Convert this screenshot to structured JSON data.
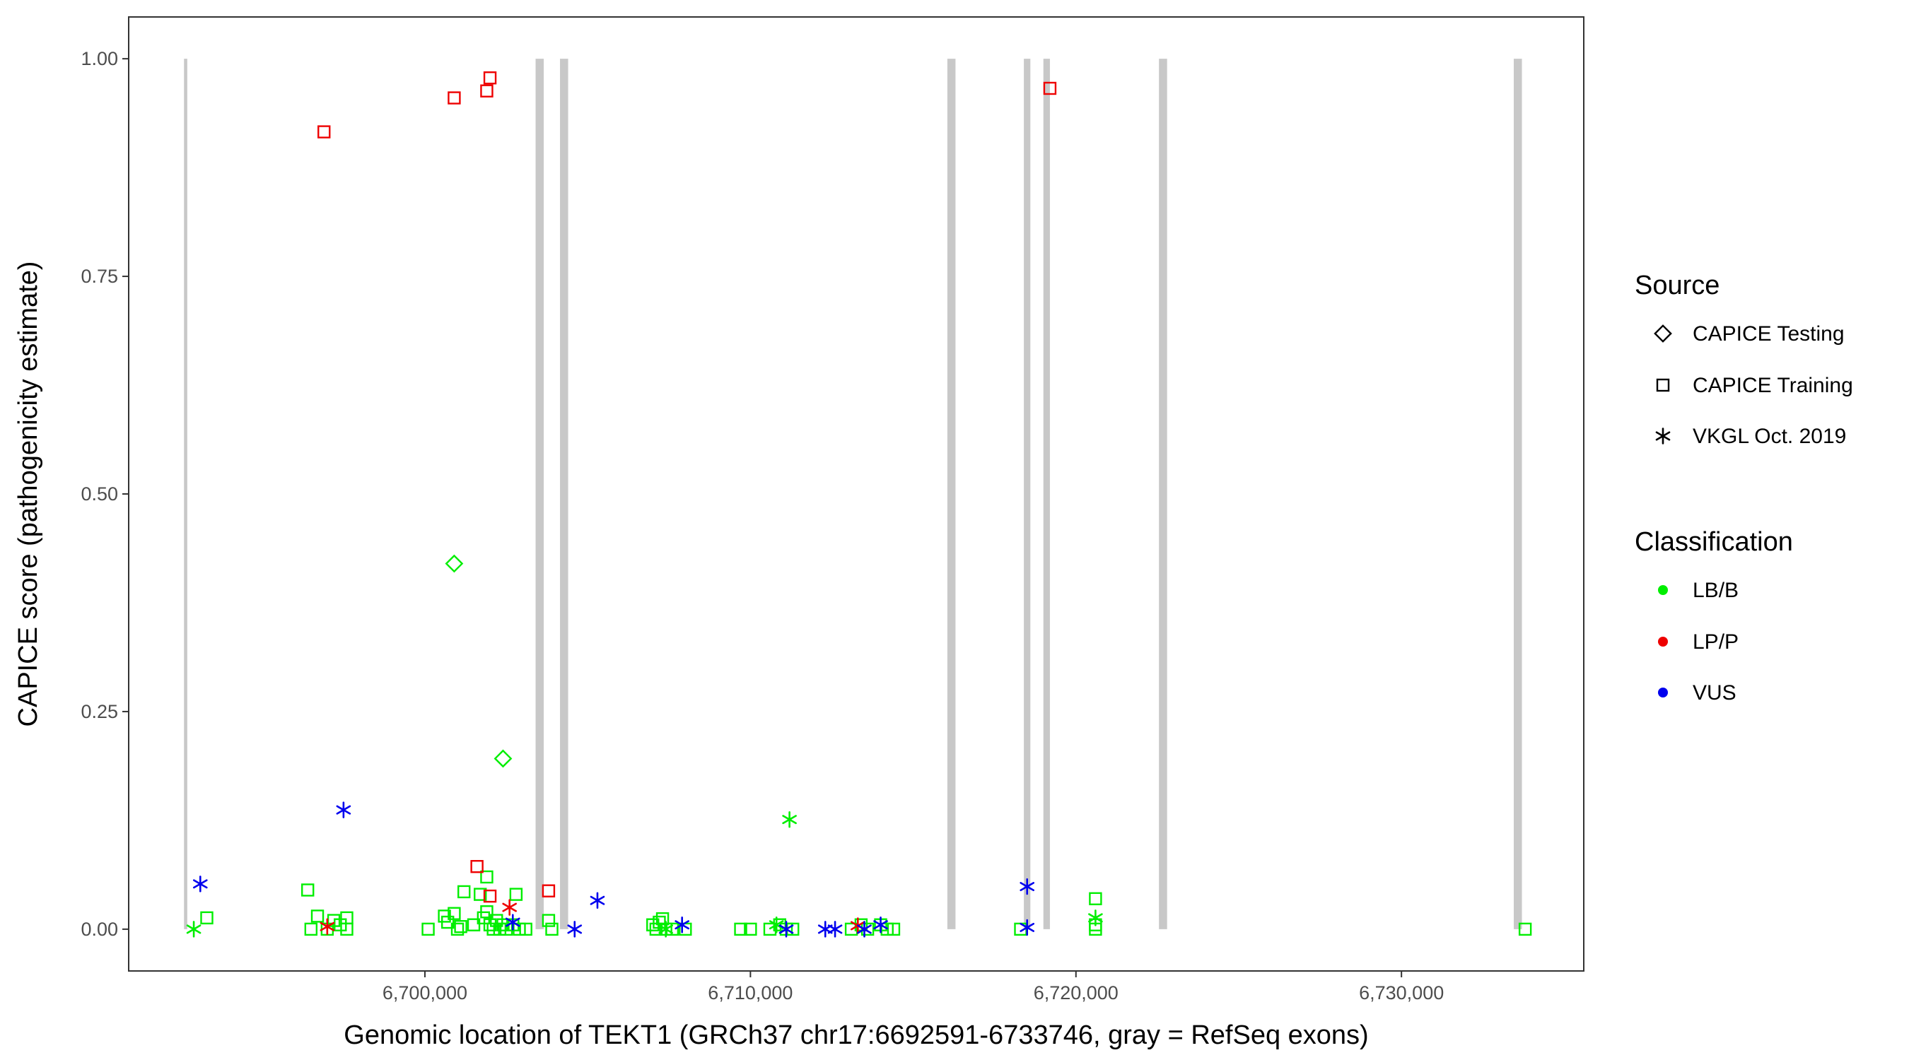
{
  "chart_data": {
    "type": "scatter",
    "title": "",
    "xlabel": "Genomic location of TEKT1 (GRCh37 chr17:6692591-6733746, gray = RefSeq exons)",
    "ylabel": "CAPICE score (pathogenicity estimate)",
    "xlim": [
      6690900,
      6735600
    ],
    "ylim": [
      -0.048,
      1.048
    ],
    "x_ticks": [
      6700000,
      6710000,
      6720000,
      6730000
    ],
    "x_tick_labels": [
      "6,700,000",
      "6,710,000",
      "6,720,000",
      "6,730,000"
    ],
    "y_ticks": [
      0,
      0.25,
      0.5,
      0.75,
      1
    ],
    "y_tick_labels": [
      "0.00",
      "0.25",
      "0.50",
      "0.75",
      "1.00"
    ],
    "grid": false,
    "exons_gray": [
      [
        6692600,
        6692700
      ],
      [
        6703400,
        6703650
      ],
      [
        6704150,
        6704400
      ],
      [
        6716050,
        6716300
      ],
      [
        6718400,
        6718600
      ],
      [
        6719000,
        6719200
      ],
      [
        6722550,
        6722800
      ],
      [
        6733450,
        6733700
      ]
    ],
    "legend": {
      "position": "right",
      "source": {
        "title": "Source",
        "entries": [
          {
            "label": "CAPICE Testing",
            "shape": "diamond"
          },
          {
            "label": "CAPICE Training",
            "shape": "square"
          },
          {
            "label": "VKGL Oct. 2019",
            "shape": "asterisk"
          }
        ]
      },
      "classification": {
        "title": "Classification",
        "entries": [
          {
            "label": "LB/B",
            "color": "#00ee00"
          },
          {
            "label": "LP/P",
            "color": "#ee0000"
          },
          {
            "label": "VUS",
            "color": "#0000ee"
          }
        ]
      }
    },
    "series": [
      {
        "name": "CAPICE Training LB/B",
        "shape": "square",
        "color": "#00ee00",
        "points": [
          [
            6693300,
            0.013
          ],
          [
            6696400,
            0.045
          ],
          [
            6696500,
            0.0
          ],
          [
            6696700,
            0.015
          ],
          [
            6697000,
            0.0
          ],
          [
            6697200,
            0.01
          ],
          [
            6697400,
            0.005
          ],
          [
            6697600,
            0.013
          ],
          [
            6697600,
            0.0
          ],
          [
            6700100,
            0.0
          ],
          [
            6700600,
            0.015
          ],
          [
            6700700,
            0.008
          ],
          [
            6700900,
            0.018
          ],
          [
            6701000,
            0.0
          ],
          [
            6701100,
            0.003
          ],
          [
            6701200,
            0.043
          ],
          [
            6701500,
            0.005
          ],
          [
            6701700,
            0.04
          ],
          [
            6701800,
            0.013
          ],
          [
            6701900,
            0.06
          ],
          [
            6701900,
            0.02
          ],
          [
            6702000,
            0.005
          ],
          [
            6702100,
            0.0
          ],
          [
            6702200,
            0.01
          ],
          [
            6702300,
            0.0
          ],
          [
            6702400,
            0.005
          ],
          [
            6702500,
            0.0
          ],
          [
            6702700,
            0.005
          ],
          [
            6702800,
            0.04
          ],
          [
            6702900,
            0.0
          ],
          [
            6703100,
            0.0
          ],
          [
            6703800,
            0.01
          ],
          [
            6703900,
            0.0
          ],
          [
            6707000,
            0.005
          ],
          [
            6707100,
            0.0
          ],
          [
            6707200,
            0.008
          ],
          [
            6707300,
            0.012
          ],
          [
            6707400,
            0.0
          ],
          [
            6707600,
            0.0
          ],
          [
            6708000,
            0.0
          ],
          [
            6709700,
            0.0
          ],
          [
            6710000,
            0.0
          ],
          [
            6710600,
            0.0
          ],
          [
            6710900,
            0.005
          ],
          [
            6711100,
            0.0
          ],
          [
            6711300,
            0.0
          ],
          [
            6713100,
            0.0
          ],
          [
            6713400,
            0.005
          ],
          [
            6713600,
            0.0
          ],
          [
            6714000,
            0.005
          ],
          [
            6714200,
            0.0
          ],
          [
            6714400,
            0.0
          ],
          [
            6718300,
            0.0
          ],
          [
            6720600,
            0.035
          ],
          [
            6720600,
            0.005
          ],
          [
            6720600,
            0.0
          ],
          [
            6733800,
            0.0
          ]
        ]
      },
      {
        "name": "CAPICE Training LP/P",
        "shape": "square",
        "color": "#ee0000",
        "points": [
          [
            6696900,
            0.916
          ],
          [
            6700900,
            0.955
          ],
          [
            6701900,
            0.963
          ],
          [
            6702000,
            0.978
          ],
          [
            6719200,
            0.966
          ],
          [
            6701600,
            0.072
          ],
          [
            6702000,
            0.038
          ],
          [
            6703800,
            0.044
          ]
        ]
      },
      {
        "name": "CAPICE Testing LB/B",
        "shape": "diamond",
        "color": "#00ee00",
        "points": [
          [
            6700900,
            0.42
          ],
          [
            6702400,
            0.196
          ]
        ]
      },
      {
        "name": "VKGL Oct. 2019 LB/B",
        "shape": "asterisk",
        "color": "#00ee00",
        "points": [
          [
            6692900,
            0.0
          ],
          [
            6711200,
            0.126
          ],
          [
            6710800,
            0.005
          ],
          [
            6720600,
            0.013
          ],
          [
            6707400,
            0.0
          ]
        ]
      },
      {
        "name": "VKGL Oct. 2019 LP/P",
        "shape": "asterisk",
        "color": "#ee0000",
        "points": [
          [
            6697000,
            0.003
          ],
          [
            6702600,
            0.025
          ],
          [
            6713300,
            0.004
          ]
        ]
      },
      {
        "name": "VKGL Oct. 2019 VUS",
        "shape": "asterisk",
        "color": "#0000ee",
        "points": [
          [
            6693100,
            0.052
          ],
          [
            6697500,
            0.137
          ],
          [
            6702700,
            0.008
          ],
          [
            6704600,
            0.0
          ],
          [
            6705300,
            0.033
          ],
          [
            6707900,
            0.005
          ],
          [
            6711100,
            0.0
          ],
          [
            6712300,
            0.0
          ],
          [
            6712600,
            0.0
          ],
          [
            6713500,
            0.0
          ],
          [
            6714000,
            0.005
          ],
          [
            6718500,
            0.049
          ],
          [
            6718500,
            0.002
          ]
        ]
      }
    ]
  }
}
